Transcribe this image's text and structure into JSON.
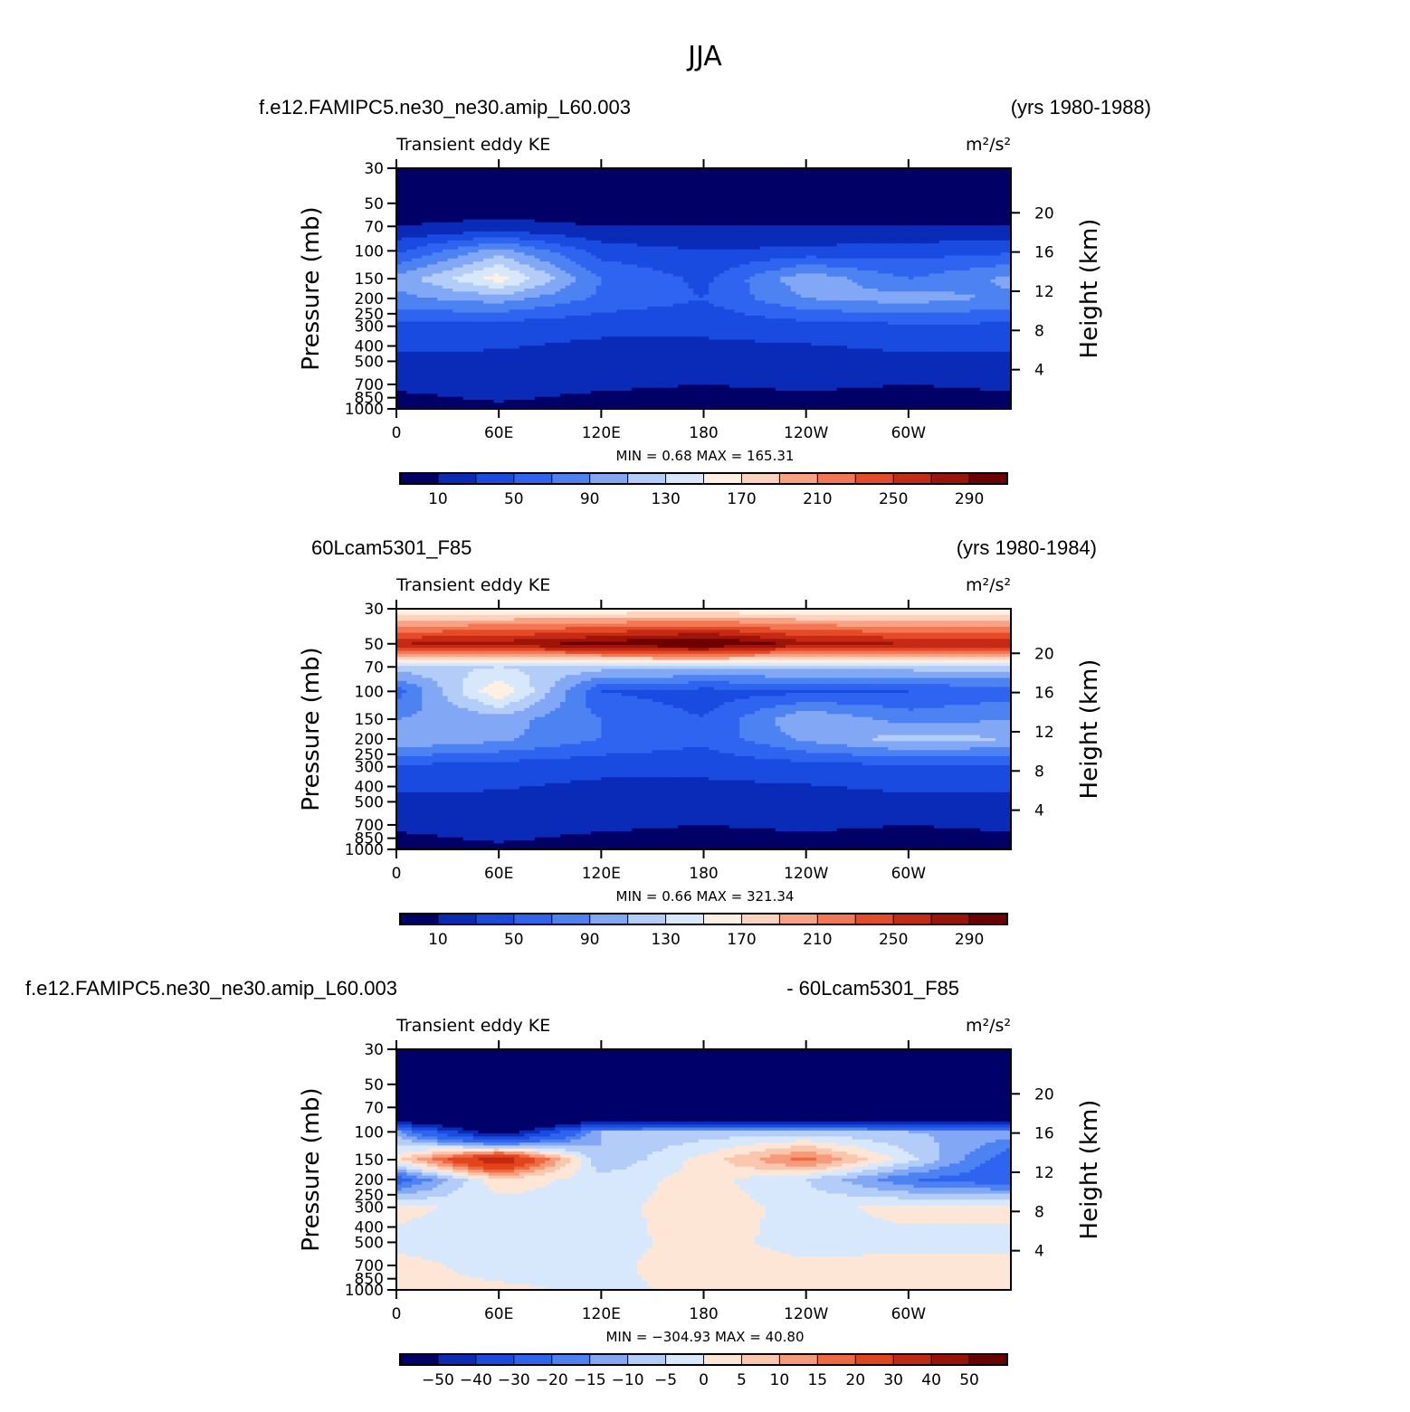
{
  "figure_title": "JJA",
  "colors": {
    "abs_levels": [
      "#000066",
      "#0a2bb8",
      "#1a4be0",
      "#2e64f0",
      "#4c82f2",
      "#82a8f5",
      "#b3cdf8",
      "#d8e8fc",
      "#fff0e3",
      "#fdd3bd",
      "#f9a283",
      "#f37752",
      "#e44b26",
      "#c62a14",
      "#9e1409",
      "#6e0000"
    ],
    "diff_levels": [
      "#00006a",
      "#0a2bb8",
      "#1a4be0",
      "#2e64f0",
      "#4c82f2",
      "#82a8f5",
      "#b3cdf8",
      "#d8e8fc",
      "#fde6d6",
      "#fbc6ae",
      "#f79a7a",
      "#f0693f",
      "#e2441c",
      "#c42810",
      "#9c1306",
      "#6a0000"
    ]
  },
  "panels": [
    {
      "left_title": "f.e12.FAMIPC5.ne30_ne30.amip_L60.003",
      "right_title": "(yrs 1980-1988)",
      "center_string": "Transient eddy KE",
      "units": "m²/s²",
      "min_max": "MIN =    0.68   MAX =  165.31"
    },
    {
      "left_title": "60Lcam5301_F85",
      "right_title": "(yrs 1980-1984)",
      "center_string": "Transient eddy KE",
      "units": "m²/s²",
      "min_max": "MIN =    0.66   MAX =  321.34"
    },
    {
      "left_title": "f.e12.FAMIPC5.ne30_ne30.amip_L60.003",
      "right_title": " - 60Lcam5301_F85",
      "center_string": "Transient eddy KE",
      "units": "m²/s²",
      "min_max": "MIN = −304.93   MAX =   40.80"
    }
  ],
  "chart_data": [
    {
      "type": "heatmap",
      "title": "Transient eddy KE",
      "xlabel": "",
      "ylabel": "Pressure (mb)",
      "y2label": "Height (km)",
      "xticks": [
        "0",
        "60E",
        "120E",
        "180",
        "120W",
        "60W"
      ],
      "yticks": [
        30,
        50,
        70,
        100,
        150,
        200,
        250,
        300,
        400,
        500,
        700,
        850,
        1000
      ],
      "y2ticks": [
        4,
        8,
        12,
        16,
        20
      ],
      "ylim": [
        1000,
        30
      ],
      "xlim": [
        0,
        360
      ],
      "colorbar_labels": [
        "10",
        "50",
        "90",
        "130",
        "170",
        "210",
        "250",
        "290"
      ],
      "colorbar_ticks": [
        10,
        30,
        50,
        70,
        90,
        110,
        130,
        150,
        170,
        190,
        210,
        230,
        250,
        270,
        290
      ],
      "field": [
        {
          "p": 30,
          "lons": [
            0,
            60,
            120,
            180,
            240,
            300,
            360
          ],
          "values": [
            5,
            5,
            5,
            5,
            5,
            5,
            5
          ]
        },
        {
          "p": 50,
          "lons": [
            0,
            60,
            120,
            180,
            240,
            300,
            360
          ],
          "values": [
            6,
            6,
            6,
            6,
            6,
            6,
            6
          ]
        },
        {
          "p": 70,
          "lons": [
            0,
            60,
            120,
            180,
            240,
            300,
            360
          ],
          "values": [
            10,
            12,
            10,
            10,
            10,
            10,
            10
          ]
        },
        {
          "p": 100,
          "lons": [
            0,
            60,
            120,
            180,
            240,
            300,
            360
          ],
          "values": [
            45,
            100,
            40,
            30,
            35,
            40,
            45
          ]
        },
        {
          "p": 150,
          "lons": [
            0,
            60,
            120,
            180,
            240,
            300,
            360
          ],
          "values": [
            95,
            160,
            70,
            45,
            105,
            70,
            95
          ]
        },
        {
          "p": 200,
          "lons": [
            0,
            60,
            120,
            180,
            240,
            300,
            360
          ],
          "values": [
            85,
            100,
            65,
            50,
            90,
            100,
            85
          ]
        },
        {
          "p": 300,
          "lons": [
            0,
            60,
            120,
            180,
            240,
            300,
            360
          ],
          "values": [
            45,
            40,
            35,
            35,
            40,
            45,
            45
          ]
        },
        {
          "p": 500,
          "lons": [
            0,
            60,
            120,
            180,
            240,
            300,
            360
          ],
          "values": [
            25,
            25,
            20,
            20,
            20,
            25,
            25
          ]
        },
        {
          "p": 700,
          "lons": [
            0,
            60,
            120,
            180,
            240,
            300,
            360
          ],
          "values": [
            12,
            15,
            12,
            10,
            12,
            10,
            12
          ]
        },
        {
          "p": 1000,
          "lons": [
            0,
            60,
            120,
            180,
            240,
            300,
            360
          ],
          "values": [
            5,
            8,
            5,
            3,
            5,
            3,
            5
          ]
        }
      ]
    },
    {
      "type": "heatmap",
      "title": "Transient eddy KE",
      "xlabel": "",
      "ylabel": "Pressure (mb)",
      "y2label": "Height (km)",
      "xticks": [
        "0",
        "60E",
        "120E",
        "180",
        "120W",
        "60W"
      ],
      "yticks": [
        30,
        50,
        70,
        100,
        150,
        200,
        250,
        300,
        400,
        500,
        700,
        850,
        1000
      ],
      "y2ticks": [
        4,
        8,
        12,
        16,
        20
      ],
      "ylim": [
        1000,
        30
      ],
      "xlim": [
        0,
        360
      ],
      "colorbar_labels": [
        "10",
        "50",
        "90",
        "130",
        "170",
        "210",
        "250",
        "290"
      ],
      "colorbar_ticks": [
        10,
        30,
        50,
        70,
        90,
        110,
        130,
        150,
        170,
        190,
        210,
        230,
        250,
        270,
        290
      ],
      "field": [
        {
          "p": 30,
          "lons": [
            0,
            60,
            120,
            180,
            240,
            300,
            360
          ],
          "values": [
            150,
            150,
            150,
            150,
            150,
            150,
            150
          ]
        },
        {
          "p": 50,
          "lons": [
            0,
            60,
            120,
            180,
            240,
            300,
            360
          ],
          "values": [
            270,
            280,
            300,
            320,
            280,
            270,
            270
          ]
        },
        {
          "p": 70,
          "lons": [
            0,
            60,
            120,
            180,
            240,
            300,
            360
          ],
          "values": [
            120,
            130,
            120,
            120,
            120,
            120,
            120
          ]
        },
        {
          "p": 100,
          "lons": [
            0,
            60,
            120,
            180,
            240,
            300,
            360
          ],
          "values": [
            60,
            170,
            50,
            40,
            45,
            50,
            60
          ]
        },
        {
          "p": 150,
          "lons": [
            0,
            60,
            120,
            180,
            240,
            300,
            360
          ],
          "values": [
            90,
            100,
            70,
            50,
            110,
            80,
            90
          ]
        },
        {
          "p": 200,
          "lons": [
            0,
            60,
            120,
            180,
            240,
            300,
            360
          ],
          "values": [
            110,
            95,
            70,
            55,
            95,
            120,
            110
          ]
        },
        {
          "p": 300,
          "lons": [
            0,
            60,
            120,
            180,
            240,
            300,
            360
          ],
          "values": [
            45,
            40,
            35,
            35,
            40,
            45,
            45
          ]
        },
        {
          "p": 500,
          "lons": [
            0,
            60,
            120,
            180,
            240,
            300,
            360
          ],
          "values": [
            25,
            25,
            20,
            20,
            20,
            25,
            25
          ]
        },
        {
          "p": 700,
          "lons": [
            0,
            60,
            120,
            180,
            240,
            300,
            360
          ],
          "values": [
            12,
            15,
            12,
            10,
            12,
            10,
            12
          ]
        },
        {
          "p": 1000,
          "lons": [
            0,
            60,
            120,
            180,
            240,
            300,
            360
          ],
          "values": [
            5,
            8,
            5,
            3,
            5,
            3,
            5
          ]
        }
      ]
    },
    {
      "type": "heatmap",
      "title": "Transient eddy KE",
      "xlabel": "",
      "ylabel": "Pressure (mb)",
      "y2label": "Height (km)",
      "xticks": [
        "0",
        "60E",
        "120E",
        "180",
        "120W",
        "60W"
      ],
      "yticks": [
        30,
        50,
        70,
        100,
        150,
        200,
        250,
        300,
        400,
        500,
        700,
        850,
        1000
      ],
      "y2ticks": [
        4,
        8,
        12,
        16,
        20
      ],
      "ylim": [
        1000,
        30
      ],
      "xlim": [
        0,
        360
      ],
      "colorbar_labels": [
        "−50",
        "−40",
        "−30",
        "−20",
        "−15",
        "−10",
        "−5",
        "0",
        "5",
        "10",
        "15",
        "20",
        "30",
        "40",
        "50"
      ],
      "colorbar_ticks": [
        -50,
        -40,
        -30,
        -20,
        -15,
        -10,
        -5,
        0,
        5,
        10,
        15,
        20,
        30,
        40,
        50
      ],
      "field": [
        {
          "p": 30,
          "lons": [
            0,
            60,
            120,
            180,
            240,
            300,
            360
          ],
          "values": [
            -145,
            -145,
            -145,
            -145,
            -145,
            -145,
            -145
          ]
        },
        {
          "p": 50,
          "lons": [
            0,
            60,
            120,
            180,
            240,
            300,
            360
          ],
          "values": [
            -270,
            -280,
            -300,
            -305,
            -280,
            -270,
            -270
          ]
        },
        {
          "p": 70,
          "lons": [
            0,
            60,
            120,
            180,
            240,
            300,
            360
          ],
          "values": [
            -100,
            -110,
            -100,
            -100,
            -100,
            -100,
            -100
          ]
        },
        {
          "p": 100,
          "lons": [
            0,
            60,
            120,
            180,
            240,
            300,
            360
          ],
          "values": [
            -12,
            -60,
            -10,
            -8,
            -8,
            -10,
            -12
          ]
        },
        {
          "p": 150,
          "lons": [
            0,
            60,
            120,
            180,
            240,
            300,
            360
          ],
          "values": [
            3,
            40,
            -10,
            2,
            18,
            -3,
            -25
          ]
        },
        {
          "p": 200,
          "lons": [
            0,
            60,
            120,
            180,
            240,
            300,
            360
          ],
          "values": [
            -25,
            4,
            -3,
            2,
            -5,
            -20,
            -25
          ]
        },
        {
          "p": 300,
          "lons": [
            0,
            60,
            120,
            180,
            240,
            300,
            360
          ],
          "values": [
            2,
            -3,
            -2,
            3,
            -2,
            2,
            2
          ]
        },
        {
          "p": 500,
          "lons": [
            0,
            60,
            120,
            180,
            240,
            300,
            360
          ],
          "values": [
            -2,
            -4,
            -2,
            2,
            -2,
            -2,
            -2
          ]
        },
        {
          "p": 700,
          "lons": [
            0,
            60,
            120,
            180,
            240,
            300,
            360
          ],
          "values": [
            2,
            -2,
            -1,
            2,
            1,
            2,
            2
          ]
        },
        {
          "p": 1000,
          "lons": [
            0,
            60,
            120,
            180,
            240,
            300,
            360
          ],
          "values": [
            1,
            1,
            -1,
            1,
            1,
            1,
            1
          ]
        }
      ]
    }
  ]
}
